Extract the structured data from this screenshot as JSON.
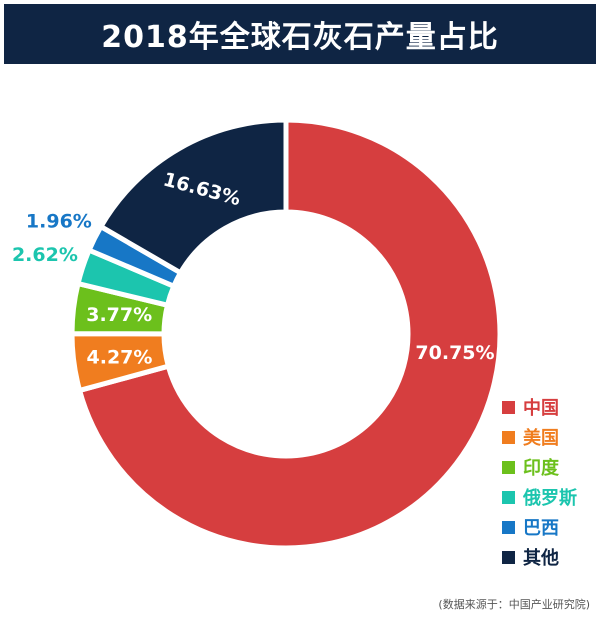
{
  "title": "2018年全球石灰石产量占比",
  "source": "(数据来源于：中国产业研究院)",
  "chart_data": {
    "type": "pie",
    "variant": "donut",
    "title": "2018年全球石灰石产量占比",
    "legend_position": "right-bottom",
    "slices": [
      {
        "label": "中国",
        "value": 70.75,
        "text": "70.75%",
        "color": "#d63e3f",
        "label_inside": true
      },
      {
        "label": "美国",
        "value": 4.27,
        "text": "4.27%",
        "color": "#f07d1f",
        "label_inside": true
      },
      {
        "label": "印度",
        "value": 3.77,
        "text": "3.77%",
        "color": "#6cc01c",
        "label_inside": true
      },
      {
        "label": "俄罗斯",
        "value": 2.62,
        "text": "2.62%",
        "color": "#1cc5ae",
        "label_inside": false
      },
      {
        "label": "巴西",
        "value": 1.96,
        "text": "1.96%",
        "color": "#1777c6",
        "label_inside": false
      },
      {
        "label": "其他",
        "value": 16.63,
        "text": "16.63%",
        "color": "#0f2544",
        "label_inside": true
      }
    ]
  }
}
